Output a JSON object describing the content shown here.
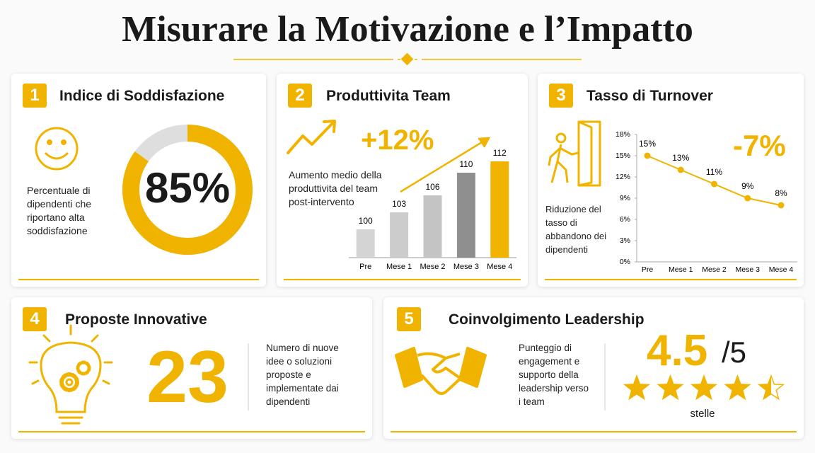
{
  "title": "Misurare la Motivazione e l’Impatto",
  "cards": [
    {
      "number": 1,
      "title": "Indice di Soddisfazione",
      "description": "Percentuale di dipendenti che riportano alta soddisfazione",
      "chart": {
        "type": "donut",
        "value": 85,
        "value_label": "85%",
        "ylim": [
          0,
          100
        ],
        "color": "#f0b400",
        "track_color": "#dedede"
      }
    },
    {
      "number": 2,
      "title": "Produttivita Team",
      "headline": "+12%",
      "description": "Aumento medio della produttivita del team post-intervento",
      "chart": {
        "type": "bar",
        "categories": [
          "Pre",
          "Mese 1",
          "Mese 2",
          "Mese 3",
          "Mese 4"
        ],
        "values": [
          100,
          103,
          106,
          110,
          112
        ],
        "colors": [
          "#d4d4d4",
          "#cccccc",
          "#c4c4c4",
          "#8f8f8f",
          "#f0b400"
        ],
        "ylim": [
          95,
          114
        ]
      }
    },
    {
      "number": 3,
      "title": "Tasso di Turnover",
      "headline": "-7%",
      "description": "Riduzione del tasso di abbandono dei dipendenti",
      "chart": {
        "type": "line",
        "categories": [
          "Pre",
          "Mese 1",
          "Mese 2",
          "Mese 3",
          "Mese 4"
        ],
        "values": [
          15,
          13,
          11,
          9,
          8
        ],
        "value_labels": [
          "15%",
          "13%",
          "11%",
          "9%",
          "8%"
        ],
        "color": "#f0b400",
        "ylim": [
          0,
          18
        ],
        "yticks": [
          {
            "value": 0,
            "label": "0%"
          },
          {
            "value": 3,
            "label": "3%"
          },
          {
            "value": 6,
            "label": "6%"
          },
          {
            "value": 9,
            "label": "9%"
          },
          {
            "value": 12,
            "label": "12%"
          },
          {
            "value": 15,
            "label": "15%"
          },
          {
            "value": 18,
            "label": "18%"
          }
        ]
      }
    },
    {
      "number": 4,
      "title": "Proposte Innovative",
      "value": 23,
      "description": "Numero di nuove idee o soluzioni proposte e implementate dai dipendenti"
    },
    {
      "number": 5,
      "title": "Coinvolgimento Leadership",
      "description": "Punteggio di engagement e supporto della leadership verso i team",
      "rating": 4.5,
      "max": {
        "value": 5,
        "label": "/5"
      },
      "unit": "stelle"
    }
  ]
}
